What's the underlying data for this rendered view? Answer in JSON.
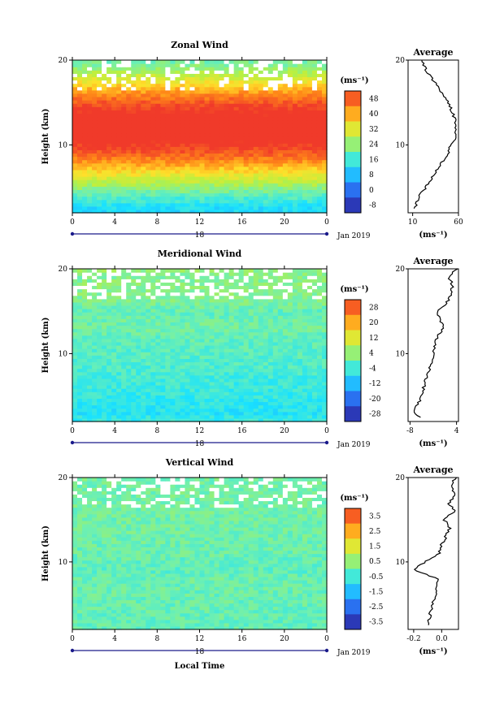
{
  "chart_data": [
    {
      "type": "heatmap",
      "title": "Zonal Wind",
      "xlabel": "",
      "ylabel": "Height (km)",
      "xlim": [
        0,
        24
      ],
      "ylim": [
        2,
        20
      ],
      "x_ticks": [
        "0",
        "4",
        "8",
        "12",
        "16",
        "20",
        "0"
      ],
      "y_ticks": [
        "10",
        "20"
      ],
      "date_day": "18",
      "date_label": "Jan 2019",
      "colorbar": {
        "unit": "(ms⁻¹)",
        "ticks": [
          "48",
          "40",
          "32",
          "24",
          "16",
          "8",
          "0",
          "-8"
        ],
        "range": [
          -12,
          52
        ]
      },
      "description_profile": {
        "height_km": [
          2.5,
          4,
          5,
          6,
          7,
          8,
          9,
          10,
          11,
          12,
          13,
          14,
          15,
          16,
          17,
          18,
          19,
          20
        ],
        "wind_ms": [
          12,
          18,
          24,
          30,
          36,
          42,
          48,
          52,
          57,
          57,
          56,
          53,
          49,
          43,
          37,
          30,
          24,
          20
        ]
      },
      "average": {
        "title": "Average",
        "unit": "(ms⁻¹)",
        "x_ticks": [
          "10",
          "60"
        ],
        "y_ticks": [
          "10",
          "20"
        ],
        "xlim": [
          5,
          60
        ]
      }
    },
    {
      "type": "heatmap",
      "title": "Meridional Wind",
      "xlabel": "",
      "ylabel": "Height (km)",
      "xlim": [
        0,
        24
      ],
      "ylim": [
        2,
        20
      ],
      "x_ticks": [
        "0",
        "4",
        "8",
        "12",
        "16",
        "20",
        "0"
      ],
      "y_ticks": [
        "10",
        "20"
      ],
      "date_day": "18",
      "date_label": "Jan 2019",
      "colorbar": {
        "unit": "(ms⁻¹)",
        "ticks": [
          "28",
          "20",
          "12",
          "4",
          "-4",
          "-12",
          "-20",
          "-28"
        ],
        "range": [
          -32,
          32
        ]
      },
      "description_profile": {
        "height_km": [
          2.5,
          3,
          4,
          5,
          6,
          7,
          8,
          9,
          10,
          11,
          12,
          13,
          14,
          15,
          16,
          17,
          18,
          19,
          20
        ],
        "wind_ms": [
          -5,
          -7,
          -6,
          -5,
          -4.5,
          -4,
          -3,
          -2.5,
          -2,
          -1.5,
          -1,
          0.5,
          0,
          -1,
          1.5,
          2.5,
          3,
          2,
          4
        ]
      },
      "average": {
        "title": "Average",
        "unit": "(ms⁻¹)",
        "x_ticks": [
          "-8",
          "4"
        ],
        "y_ticks": [
          "10",
          "20"
        ],
        "xlim": [
          -8.5,
          4.5
        ]
      }
    },
    {
      "type": "heatmap",
      "title": "Vertical Wind",
      "xlabel": "Local Time",
      "ylabel": "Height (km)",
      "xlim": [
        0,
        24
      ],
      "ylim": [
        2,
        20
      ],
      "x_ticks": [
        "0",
        "4",
        "8",
        "12",
        "16",
        "20",
        "0"
      ],
      "y_ticks": [
        "10",
        "20"
      ],
      "date_day": "18",
      "date_label": "Jan 2019",
      "colorbar": {
        "unit": "(ms⁻¹)",
        "ticks": [
          "3.5",
          "2.5",
          "1.5",
          "0.5",
          "-0.5",
          "-1.5",
          "-2.5",
          "-3.5"
        ],
        "range": [
          -4,
          4
        ]
      },
      "description_profile": {
        "height_km": [
          2.5,
          4,
          6,
          8,
          9,
          10,
          11,
          12,
          13,
          14,
          15,
          16,
          17,
          18,
          19,
          20
        ],
        "wind_ms": [
          -0.1,
          -0.08,
          -0.05,
          -0.02,
          -0.2,
          -0.12,
          -0.02,
          0.0,
          0.03,
          0.06,
          0.02,
          0.09,
          0.05,
          0.1,
          0.06,
          0.1
        ]
      },
      "average": {
        "title": "Average",
        "unit": "(ms⁻¹)",
        "x_ticks": [
          "-0.2",
          "0.0"
        ],
        "y_ticks": [
          "10",
          "20"
        ],
        "xlim": [
          -0.24,
          0.12
        ]
      }
    }
  ]
}
